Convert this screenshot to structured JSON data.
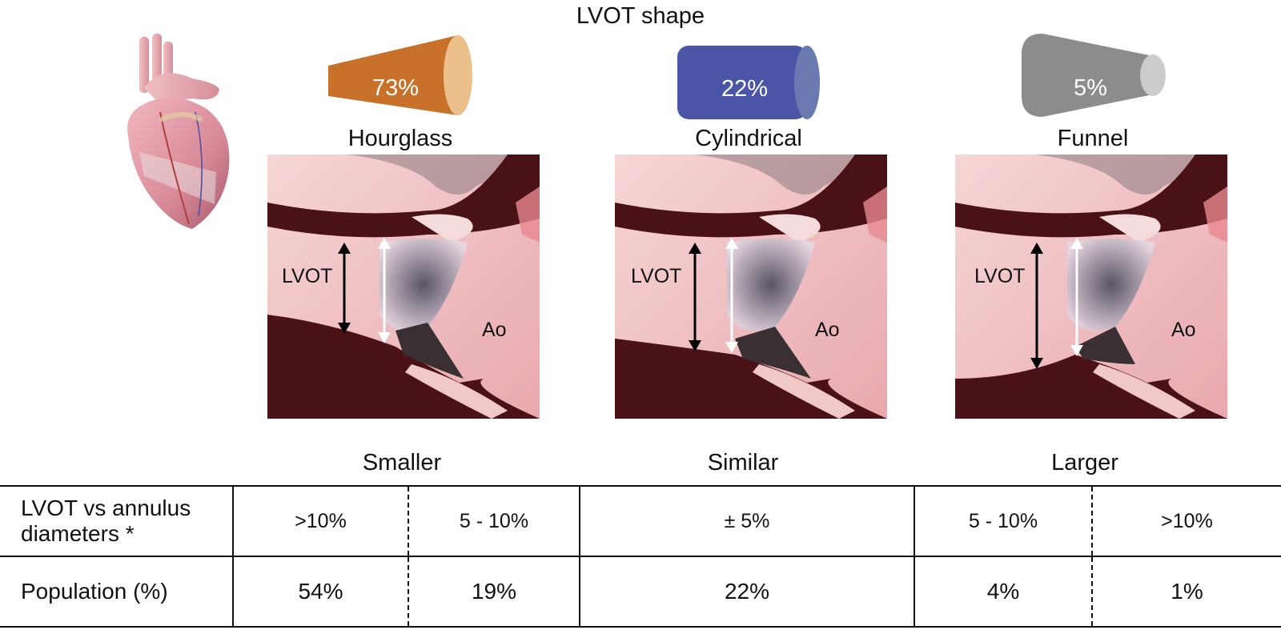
{
  "header": {
    "title": "LVOT shape"
  },
  "shapes": [
    {
      "label": "Hourglass",
      "percent": "73%",
      "color": "#c8712a",
      "end_color": "#ecc08c"
    },
    {
      "label": "Cylindrical",
      "percent": "22%",
      "color": "#4a55a8",
      "end_color": "#6a7ab0"
    },
    {
      "label": "Funnel",
      "percent": "5%",
      "color": "#8c8c8c",
      "end_color": "#cccccc"
    }
  ],
  "panels": [
    {
      "lvot_label": "LVOT",
      "ao_label": "Ao"
    },
    {
      "lvot_label": "LVOT",
      "ao_label": "Ao"
    },
    {
      "lvot_label": "LVOT",
      "ao_label": "Ao"
    }
  ],
  "categories": [
    "Smaller",
    "Similar",
    "Larger"
  ],
  "table": {
    "row1": {
      "header": "LVOT vs annulus diameters *",
      "values": [
        ">10%",
        "5 - 10%",
        "± 5%",
        "5 - 10%",
        ">10%"
      ]
    },
    "row2": {
      "header": "Population (%)",
      "values": [
        "54%",
        "19%",
        "22%",
        "4%",
        "1%"
      ]
    }
  }
}
